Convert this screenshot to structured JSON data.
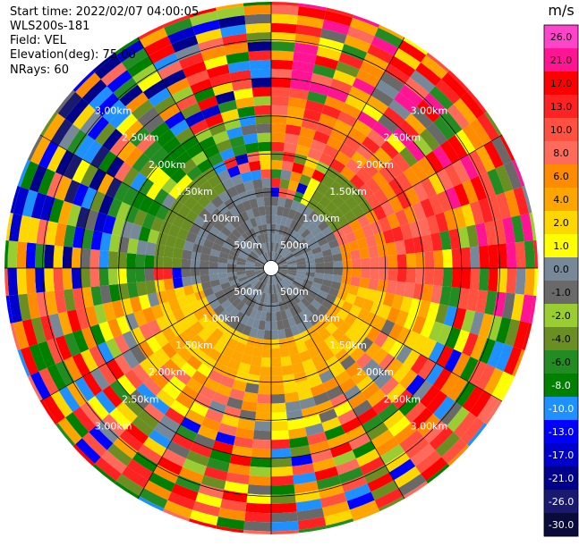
{
  "header": {
    "start_time": "Start time: 2022/02/07 04:00:05",
    "instrument": "WLS200s-181",
    "field": "Field: VEL",
    "elevation": "Elevation(deg): 75.00",
    "nrays": "NRays: 60"
  },
  "chart_data": {
    "type": "heatmap",
    "projection": "polar-ppi",
    "title": "",
    "nrays": 60,
    "range_unit_label": "km",
    "range_rings": [
      {
        "range_m": 500,
        "label": "500m"
      },
      {
        "range_m": 1000,
        "label": "1.00km"
      },
      {
        "range_m": 1500,
        "label": "1.50km"
      },
      {
        "range_m": 2000,
        "label": "2.00km"
      },
      {
        "range_m": 2500,
        "label": "2.50km"
      },
      {
        "range_m": 3000,
        "label": "3.00km"
      }
    ],
    "max_range_m": 3500,
    "blanked_ray_azimuth_deg": 330,
    "velocity_sectors": [
      {
        "az_from": 250,
        "az_to": 330,
        "range_from": 2000,
        "range_to": 3500,
        "value": -6
      },
      {
        "az_from": 330,
        "az_to": 360,
        "range_from": 1500,
        "range_to": 2000,
        "value": -4
      },
      {
        "az_from": 270,
        "az_to": 330,
        "range_from": 1200,
        "range_to": 2000,
        "value": -3
      },
      {
        "az_from": 240,
        "az_to": 270,
        "range_from": 1500,
        "range_to": 3500,
        "value": -2
      },
      {
        "az_from": 30,
        "az_to": 60,
        "range_from": 1000,
        "range_to": 2200,
        "value": -3
      },
      {
        "az_from": 60,
        "az_to": 90,
        "range_from": 1000,
        "range_to": 1500,
        "value": -2
      },
      {
        "az_from": 100,
        "az_to": 260,
        "range_from": 1000,
        "range_to": 2500,
        "value": 4
      },
      {
        "az_from": 100,
        "az_to": 260,
        "range_from": 2500,
        "range_to": 3500,
        "value": 5
      },
      {
        "az_from": 260,
        "az_to": 360,
        "range_from": 100,
        "range_to": 1200,
        "value": 0
      },
      {
        "az_from": 0,
        "az_to": 100,
        "range_from": 100,
        "range_to": 1000,
        "value": 0
      },
      {
        "az_from": 100,
        "az_to": 260,
        "range_from": 100,
        "range_to": 1000,
        "value": 0
      },
      {
        "az_from": 0,
        "az_to": 100,
        "range_from": 1500,
        "range_to": 3500,
        "value": 10
      },
      {
        "az_from": 60,
        "az_to": 100,
        "range_from": 1000,
        "range_to": 1500,
        "value": 8
      }
    ],
    "colorbar": {
      "label": "m/s",
      "min": -30.0,
      "max": 30.0,
      "ticks": [
        "26.0",
        "21.0",
        "17.0",
        "13.0",
        "10.0",
        "8.0",
        "6.0",
        "4.0",
        "2.0",
        "1.0",
        "0.0",
        "-1.0",
        "-2.0",
        "-4.0",
        "-6.0",
        "-8.0",
        "-10.0",
        "-13.0",
        "-17.0",
        "-21.0",
        "-26.0",
        "-30.0"
      ],
      "bands": [
        {
          "from": 26.0,
          "to": 30.0,
          "color": "#ff44cc"
        },
        {
          "from": 21.0,
          "to": 26.0,
          "color": "#ff1493"
        },
        {
          "from": 17.0,
          "to": 21.0,
          "color": "#ff0000"
        },
        {
          "from": 13.0,
          "to": 17.0,
          "color": "#ff2222"
        },
        {
          "from": 10.0,
          "to": 13.0,
          "color": "#ff5040"
        },
        {
          "from": 8.0,
          "to": 10.0,
          "color": "#ff6b5b"
        },
        {
          "from": 6.0,
          "to": 8.0,
          "color": "#ff8c00"
        },
        {
          "from": 4.0,
          "to": 6.0,
          "color": "#ffa500"
        },
        {
          "from": 2.0,
          "to": 4.0,
          "color": "#ffd700"
        },
        {
          "from": 1.0,
          "to": 2.0,
          "color": "#ffff00"
        },
        {
          "from": 0.0,
          "to": 1.0,
          "color": "#778899"
        },
        {
          "from": -1.0,
          "to": 0.0,
          "color": "#696969"
        },
        {
          "from": -2.0,
          "to": -1.0,
          "color": "#9acd32"
        },
        {
          "from": -4.0,
          "to": -2.0,
          "color": "#6b8e23"
        },
        {
          "from": -6.0,
          "to": -4.0,
          "color": "#228b22"
        },
        {
          "from": -8.0,
          "to": -6.0,
          "color": "#008000"
        },
        {
          "from": -10.0,
          "to": -8.0,
          "color": "#1e90ff"
        },
        {
          "from": -13.0,
          "to": -10.0,
          "color": "#0000ff"
        },
        {
          "from": -17.0,
          "to": -13.0,
          "color": "#0000cd"
        },
        {
          "from": -21.0,
          "to": -17.0,
          "color": "#00008b"
        },
        {
          "from": -26.0,
          "to": -21.0,
          "color": "#191970"
        },
        {
          "from": -30.0,
          "to": -26.0,
          "color": "#0b0b3b"
        }
      ]
    }
  }
}
